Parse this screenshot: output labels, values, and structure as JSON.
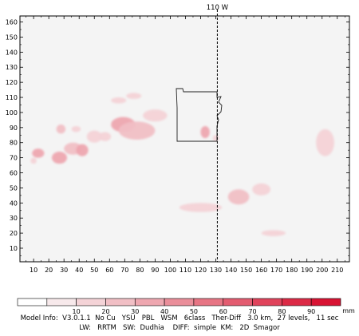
{
  "chart_data": {
    "type": "heatmap",
    "title": "",
    "xlabel": "",
    "ylabel": "",
    "xlim": [
      1,
      218
    ],
    "ylim": [
      1,
      164
    ],
    "x_ticks": [
      10,
      20,
      30,
      40,
      50,
      60,
      70,
      80,
      90,
      100,
      110,
      120,
      130,
      140,
      150,
      160,
      170,
      180,
      190,
      200,
      210
    ],
    "y_ticks": [
      10,
      20,
      30,
      40,
      50,
      60,
      70,
      80,
      90,
      100,
      110,
      120,
      130,
      140,
      150,
      160
    ],
    "meridian": {
      "label": "110 W",
      "x": 131
    },
    "colorbar": {
      "levels": [
        10,
        20,
        30,
        40,
        50,
        60,
        70,
        80,
        90
      ],
      "unit": "mm",
      "colors": [
        "#ffffff",
        "#f7e9eb",
        "#f4d3d7",
        "#f1bfc5",
        "#eea7b0",
        "#ea8e9a",
        "#e77584",
        "#e35c70",
        "#e0435b",
        "#dc2a46",
        "#d81333"
      ]
    },
    "cells": [
      {
        "x": 13,
        "y": 73,
        "rx": 4,
        "ry": 3,
        "level": 4
      },
      {
        "x": 10,
        "y": 68,
        "rx": 2,
        "ry": 2,
        "level": 2
      },
      {
        "x": 27,
        "y": 70,
        "rx": 5,
        "ry": 4,
        "level": 4
      },
      {
        "x": 36,
        "y": 76,
        "rx": 6,
        "ry": 4,
        "level": 3
      },
      {
        "x": 42,
        "y": 75,
        "rx": 4,
        "ry": 4,
        "level": 4
      },
      {
        "x": 50,
        "y": 84,
        "rx": 5,
        "ry": 4,
        "level": 2
      },
      {
        "x": 57,
        "y": 84,
        "rx": 4,
        "ry": 3,
        "level": 2
      },
      {
        "x": 69,
        "y": 92,
        "rx": 8,
        "ry": 5,
        "level": 4
      },
      {
        "x": 78,
        "y": 88,
        "rx": 12,
        "ry": 6,
        "level": 3
      },
      {
        "x": 90,
        "y": 98,
        "rx": 8,
        "ry": 4,
        "level": 2
      },
      {
        "x": 28,
        "y": 89,
        "rx": 3,
        "ry": 3,
        "level": 3
      },
      {
        "x": 38,
        "y": 89,
        "rx": 3,
        "ry": 2,
        "level": 2
      },
      {
        "x": 66,
        "y": 108,
        "rx": 5,
        "ry": 2,
        "level": 2
      },
      {
        "x": 76,
        "y": 111,
        "rx": 5,
        "ry": 2,
        "level": 2
      },
      {
        "x": 123,
        "y": 87,
        "rx": 3,
        "ry": 4,
        "level": 4
      },
      {
        "x": 130,
        "y": 83,
        "rx": 2,
        "ry": 2,
        "level": 2
      },
      {
        "x": 145,
        "y": 44,
        "rx": 7,
        "ry": 5,
        "level": 3
      },
      {
        "x": 120,
        "y": 37,
        "rx": 14,
        "ry": 3,
        "level": 2
      },
      {
        "x": 160,
        "y": 49,
        "rx": 6,
        "ry": 4,
        "level": 2
      },
      {
        "x": 168,
        "y": 20,
        "rx": 8,
        "ry": 2,
        "level": 2
      },
      {
        "x": 202,
        "y": 80,
        "rx": 6,
        "ry": 9,
        "level": 2
      }
    ]
  },
  "footer": {
    "unit": "mm",
    "line1": "Model Info:  V3.0.1.1  No Cu   YSU   PBL   WSM   6class   Ther-Diff   3.0 km,  27 levels,   11 sec",
    "line2": "LW:   RRTM   SW:  Dudhia    DIFF:  simple  KM:   2D  Smagor"
  }
}
